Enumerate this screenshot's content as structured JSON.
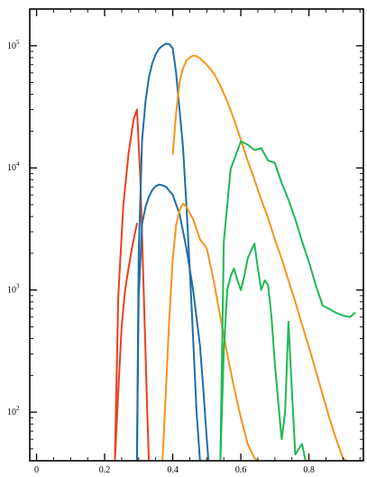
{
  "chart_data": {
    "type": "line",
    "title": "",
    "xlabel": "",
    "ylabel": "",
    "xscale": "linear",
    "yscale": "log",
    "xlim": [
      -0.02,
      0.96
    ],
    "ylim": [
      40,
      200000
    ],
    "grid": false,
    "legend": "none",
    "x_ticks": [
      {
        "value": 0,
        "label": "0"
      },
      {
        "value": 0.2,
        "label": "0.2"
      },
      {
        "value": 0.4,
        "label": "0.4"
      },
      {
        "value": 0.6,
        "label": "0.6"
      },
      {
        "value": 0.8,
        "label": "0.8"
      }
    ],
    "y_ticks": [
      {
        "value": 100,
        "base": "10",
        "exp": "2"
      },
      {
        "value": 1000,
        "base": "10",
        "exp": "3"
      },
      {
        "value": 10000,
        "base": "10",
        "exp": "4"
      },
      {
        "value": 100000,
        "base": "10",
        "exp": "5"
      }
    ],
    "series": [
      {
        "color": "#e8411e",
        "x": [
          0.23,
          0.24,
          0.255,
          0.27,
          0.285,
          0.295,
          0.305,
          0.315,
          0.325,
          0.33
        ],
        "y": [
          40,
          900,
          5000,
          13000,
          25000,
          30000,
          8000,
          900,
          100,
          40
        ]
      },
      {
        "color": "#e8411e",
        "x": [
          0.23,
          0.24,
          0.25,
          0.26,
          0.27,
          0.28,
          0.29,
          0.295
        ],
        "y": [
          40,
          150,
          500,
          1000,
          1500,
          2200,
          3000,
          3500
        ]
      },
      {
        "color": "#1f6ea6",
        "x": [
          0.295,
          0.3,
          0.31,
          0.32,
          0.33,
          0.34,
          0.35,
          0.36,
          0.37,
          0.38,
          0.39,
          0.4,
          0.41,
          0.42,
          0.43,
          0.44,
          0.45,
          0.46,
          0.47,
          0.48
        ],
        "y": [
          40,
          2000,
          17000,
          35000,
          55000,
          72000,
          85000,
          95000,
          100000,
          104000,
          103000,
          95000,
          60000,
          30000,
          15000,
          5000,
          1500,
          400,
          100,
          40
        ]
      },
      {
        "color": "#1f6ea6",
        "x": [
          0.295,
          0.3,
          0.31,
          0.32,
          0.33,
          0.34,
          0.35,
          0.36,
          0.37,
          0.38,
          0.39,
          0.4,
          0.42,
          0.44,
          0.46,
          0.48,
          0.49,
          0.5,
          0.505
        ],
        "y": [
          40,
          900,
          3500,
          4800,
          5800,
          6600,
          7100,
          7300,
          7200,
          7000,
          6500,
          6000,
          4200,
          2200,
          1000,
          350,
          150,
          60,
          40
        ]
      },
      {
        "color": "#f7941d",
        "x": [
          0.4,
          0.41,
          0.42,
          0.43,
          0.44,
          0.45,
          0.46,
          0.47,
          0.48,
          0.5,
          0.52,
          0.54,
          0.56,
          0.58,
          0.6,
          0.62,
          0.64,
          0.66,
          0.68,
          0.7,
          0.72,
          0.74,
          0.76,
          0.78,
          0.8,
          0.82,
          0.84,
          0.86,
          0.88,
          0.9,
          0.91
        ],
        "y": [
          13000,
          28000,
          50000,
          65000,
          76000,
          80000,
          83000,
          82000,
          79000,
          70000,
          60000,
          47000,
          35000,
          25000,
          17000,
          11500,
          8000,
          5500,
          3900,
          2600,
          1800,
          1200,
          800,
          520,
          340,
          220,
          140,
          90,
          60,
          42,
          40
        ]
      },
      {
        "color": "#f7941d",
        "x": [
          0.37,
          0.38,
          0.39,
          0.4,
          0.41,
          0.42,
          0.43,
          0.44,
          0.46,
          0.48,
          0.5,
          0.52,
          0.54,
          0.56,
          0.58,
          0.6,
          0.62,
          0.64,
          0.65
        ],
        "y": [
          40,
          150,
          600,
          1800,
          3400,
          4500,
          5100,
          4800,
          3800,
          2600,
          2200,
          1200,
          600,
          300,
          160,
          90,
          55,
          42,
          40
        ]
      },
      {
        "color": "#1db954",
        "x": [
          0.54,
          0.55,
          0.57,
          0.6,
          0.62,
          0.64,
          0.66,
          0.68,
          0.7,
          0.72,
          0.74,
          0.76,
          0.78,
          0.8,
          0.82,
          0.84,
          0.86,
          0.88,
          0.9,
          0.92,
          0.935
        ],
        "y": [
          40,
          2500,
          9800,
          16500,
          15500,
          14000,
          14500,
          11500,
          11000,
          7500,
          5500,
          3800,
          2500,
          1700,
          1100,
          750,
          700,
          650,
          620,
          600,
          650
        ]
      },
      {
        "color": "#1db954",
        "x": [
          0.54,
          0.55,
          0.56,
          0.57,
          0.58,
          0.59,
          0.6,
          0.61,
          0.62,
          0.63,
          0.64,
          0.65,
          0.66,
          0.67,
          0.68,
          0.69,
          0.7,
          0.71,
          0.72,
          0.73,
          0.74,
          0.75,
          0.76,
          0.77,
          0.78,
          0.79,
          0.8,
          0.81,
          0.82,
          0.83
        ],
        "y": [
          40,
          320,
          1000,
          1300,
          1500,
          1200,
          1000,
          1300,
          1800,
          2100,
          2400,
          1500,
          1000,
          1200,
          1100,
          600,
          250,
          120,
          60,
          100,
          550,
          150,
          45,
          50,
          55,
          40,
          40,
          40,
          40,
          40
        ]
      }
    ]
  }
}
